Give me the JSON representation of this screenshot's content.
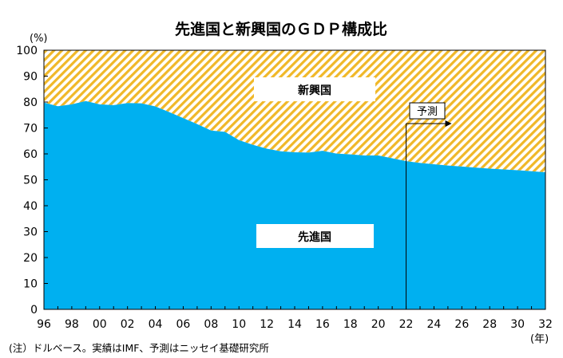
{
  "chart_data": {
    "type": "area",
    "title": "先進国と新興国のＧＤＰ構成比",
    "y_unit": "(%)",
    "x_unit": "(年)",
    "ylim": [
      0,
      100
    ],
    "y_ticks": [
      0,
      10,
      20,
      30,
      40,
      50,
      60,
      70,
      80,
      90,
      100
    ],
    "x_tick_labels": [
      "96",
      "98",
      "00",
      "02",
      "04",
      "06",
      "08",
      "10",
      "12",
      "14",
      "16",
      "18",
      "20",
      "22",
      "24",
      "26",
      "28",
      "30",
      "32"
    ],
    "grid": false,
    "x_years": [
      1996,
      1997,
      1998,
      1999,
      2000,
      2001,
      2002,
      2003,
      2004,
      2005,
      2006,
      2007,
      2008,
      2009,
      2010,
      2011,
      2012,
      2013,
      2014,
      2015,
      2016,
      2017,
      2018,
      2019,
      2020,
      2021,
      2022,
      2023,
      2024,
      2025,
      2026,
      2027,
      2028,
      2029,
      2030,
      2031,
      2032
    ],
    "series": [
      {
        "name": "先進国",
        "color": "#00b0f0",
        "values": [
          79.8,
          78.4,
          79.1,
          80.4,
          79.1,
          78.8,
          79.6,
          79.5,
          78.3,
          76.1,
          73.8,
          71.5,
          69.0,
          68.5,
          65.3,
          63.5,
          62.0,
          61.0,
          60.6,
          60.5,
          61.2,
          60.1,
          59.8,
          59.4,
          59.4,
          58.3,
          57.2,
          56.5,
          56.0,
          55.5,
          55.1,
          54.7,
          54.3,
          54.0,
          53.7,
          53.3,
          52.9
        ]
      },
      {
        "name": "新興国",
        "color": "#f0b828",
        "pattern": "diagonal-hatch",
        "values": [
          20.2,
          21.6,
          20.9,
          19.6,
          20.9,
          21.2,
          20.4,
          20.5,
          21.7,
          23.9,
          26.2,
          28.5,
          31.0,
          31.5,
          34.7,
          36.5,
          38.0,
          39.0,
          39.4,
          39.5,
          38.8,
          39.9,
          40.2,
          40.6,
          40.6,
          41.7,
          42.8,
          43.5,
          44.0,
          44.5,
          44.9,
          45.3,
          45.7,
          46.0,
          46.3,
          46.7,
          47.1
        ]
      }
    ],
    "annotations": {
      "forecast_label": "予測",
      "forecast_start_year": 2022
    },
    "note": "(注）ドルベース。実績はIMF、予測はニッセイ基礎研究所"
  }
}
